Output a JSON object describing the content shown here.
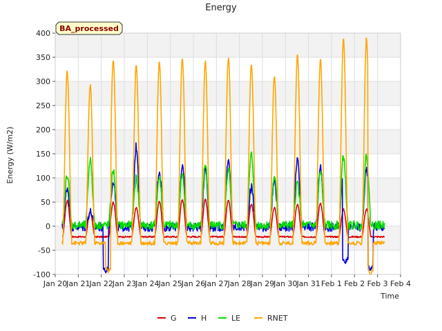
{
  "chart_data": {
    "type": "line",
    "title": "Energy",
    "badge": "BA_processed",
    "xlabel": "Time",
    "ylabel": "Energy (W/m2)",
    "xlim": [
      0,
      15
    ],
    "ylim": [
      -100,
      400
    ],
    "yticks": [
      -100,
      -50,
      0,
      50,
      100,
      150,
      200,
      250,
      300,
      350,
      400
    ],
    "xticks": [
      {
        "pos": 0,
        "label": "Jan 20"
      },
      {
        "pos": 1,
        "label": "Jan 21"
      },
      {
        "pos": 2,
        "label": "Jan 22"
      },
      {
        "pos": 3,
        "label": "Jan 23"
      },
      {
        "pos": 4,
        "label": "Jan 24"
      },
      {
        "pos": 5,
        "label": "Jan 25"
      },
      {
        "pos": 6,
        "label": "Jan 26"
      },
      {
        "pos": 7,
        "label": "Jan 27"
      },
      {
        "pos": 8,
        "label": "Jan 28"
      },
      {
        "pos": 9,
        "label": "Jan 29"
      },
      {
        "pos": 10,
        "label": "Jan 30"
      },
      {
        "pos": 11,
        "label": "Jan 31"
      },
      {
        "pos": 12,
        "label": "Feb 1"
      },
      {
        "pos": 13,
        "label": "Feb 2"
      },
      {
        "pos": 14,
        "label": "Feb 3"
      },
      {
        "pos": 15,
        "label": "Feb 4"
      }
    ],
    "legend_position": "bottom-center",
    "day_range": [
      0.3,
      14.3
    ],
    "series": [
      {
        "name": "G",
        "color": "#dd0000",
        "night": -22,
        "peaks": [
          53,
          30,
          50,
          38,
          52,
          55,
          56,
          55,
          45,
          38,
          45,
          48,
          35,
          35
        ]
      },
      {
        "name": "H",
        "color": "#0000dd",
        "night": -2,
        "peaks": [
          80,
          30,
          95,
          165,
          115,
          125,
          120,
          133,
          80,
          95,
          135,
          120,
          120,
          115
        ],
        "dips": [
          {
            "x": 2.2,
            "v": -95
          },
          {
            "x": 12.6,
            "v": -75
          },
          {
            "x": 13.7,
            "v": -90
          }
        ]
      },
      {
        "name": "LE",
        "color": "#00dd00",
        "night": 2,
        "peaks": [
          108,
          138,
          115,
          100,
          100,
          105,
          128,
          118,
          148,
          100,
          90,
          110,
          145,
          145
        ]
      },
      {
        "name": "RNET",
        "color": "#ffa500",
        "night": -35,
        "peaks": [
          320,
          293,
          345,
          335,
          342,
          348,
          340,
          348,
          337,
          312,
          355,
          345,
          390,
          390
        ],
        "dips": [
          {
            "x": 2.3,
            "v": -95
          },
          {
            "x": 13.7,
            "v": -100
          }
        ]
      }
    ]
  }
}
